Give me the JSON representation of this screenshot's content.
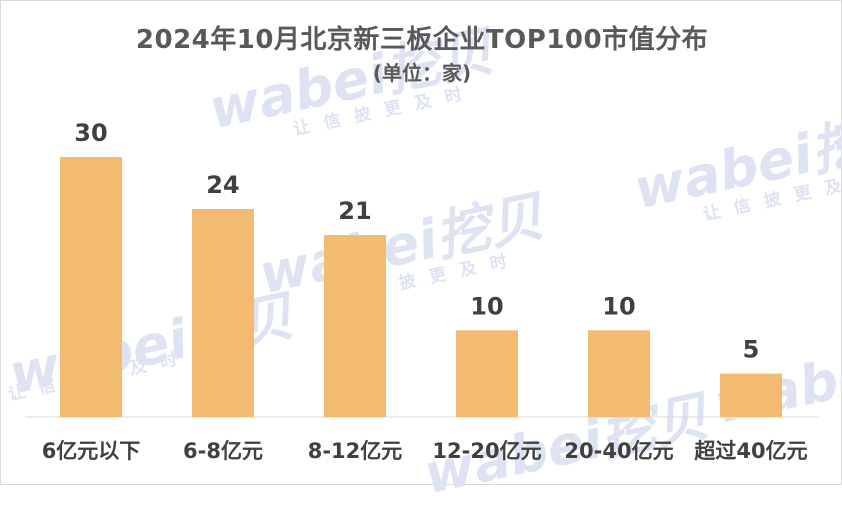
{
  "watermark": {
    "brand": "wabei挖贝",
    "tagline": "让信披更及时"
  },
  "chart_data": {
    "type": "bar",
    "title": "2024年10月北京新三板企业TOP100市值分布",
    "subtitle": "(单位：家)",
    "categories": [
      "6亿元以下",
      "6-8亿元",
      "8-12亿元",
      "12-20亿元",
      "20-40亿元",
      "超过40亿元"
    ],
    "values": [
      30,
      24,
      21,
      10,
      10,
      5
    ],
    "ylim": [
      0,
      30
    ],
    "bar_color": "#f2bb70",
    "grid": false,
    "legend": "none"
  }
}
